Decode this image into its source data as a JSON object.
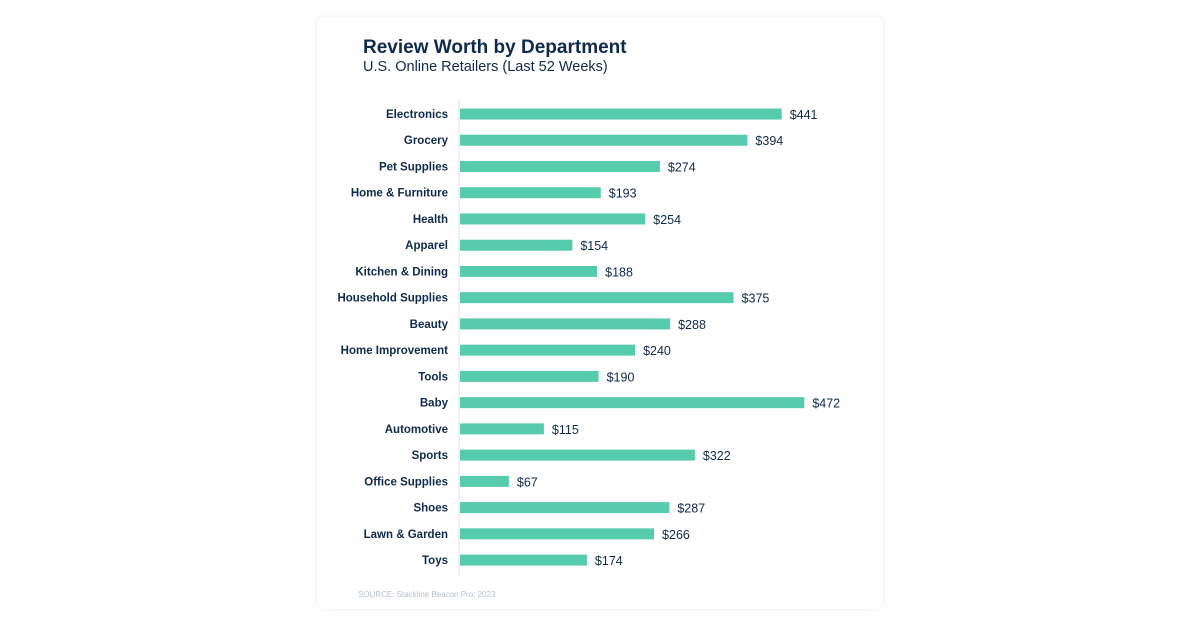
{
  "chart_data": {
    "type": "bar",
    "orientation": "horizontal",
    "title": "Review Worth by Department",
    "subtitle": "U.S. Online Retailers (Last 52 Weeks)",
    "source": "SOURCE:  Stackline Beacon Pro; 2023",
    "categories": [
      "Electronics",
      "Grocery",
      "Pet Supplies",
      "Home & Furniture",
      "Health",
      "Apparel",
      "Kitchen & Dining",
      "Household Supplies",
      "Beauty",
      "Home Improvement",
      "Tools",
      "Baby",
      "Automotive",
      "Sports",
      "Office Supplies",
      "Shoes",
      "Lawn & Garden",
      "Toys"
    ],
    "values": [
      441,
      394,
      274,
      193,
      254,
      154,
      188,
      375,
      288,
      240,
      190,
      472,
      115,
      322,
      67,
      287,
      266,
      174
    ],
    "value_prefix": "$",
    "xlim": [
      0,
      500
    ],
    "grid": false,
    "bar_color": "#57cbad",
    "text_color": "#0f2a4a"
  }
}
